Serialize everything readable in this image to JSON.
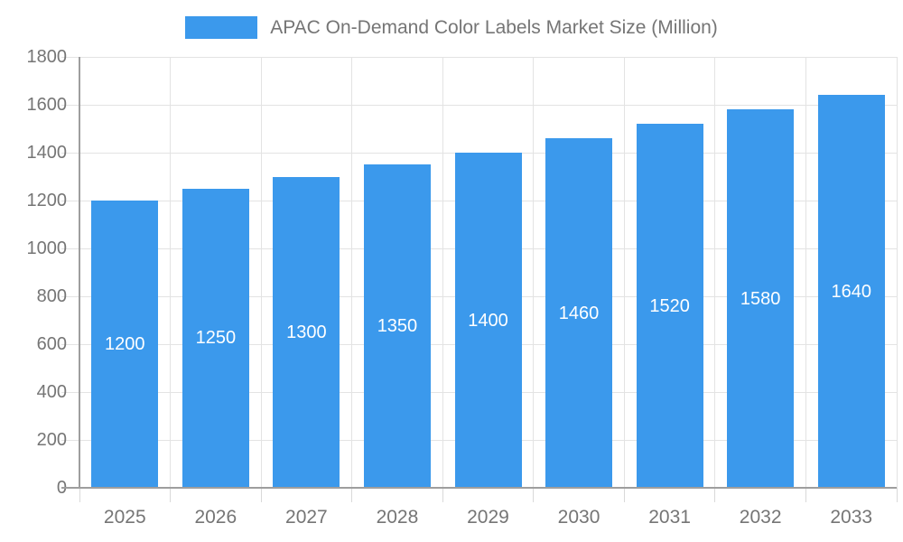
{
  "legend": {
    "label": "APAC On-Demand Color Labels Market Size (Million)",
    "swatch_color": "#3B99EC"
  },
  "chart_data": {
    "type": "bar",
    "title": "APAC On-Demand Color Labels Market Size (Million)",
    "categories": [
      "2025",
      "2026",
      "2027",
      "2028",
      "2029",
      "2030",
      "2031",
      "2032",
      "2033"
    ],
    "values": [
      1200,
      1250,
      1300,
      1350,
      1400,
      1460,
      1520,
      1580,
      1640
    ],
    "bar_labels": [
      "1200",
      "1250",
      "1300",
      "1350",
      "1400",
      "1460",
      "1520",
      "1580",
      "1640"
    ],
    "xlabel": "",
    "ylabel": "",
    "ylim": [
      0,
      1800
    ],
    "yticks": [
      0,
      200,
      400,
      600,
      800,
      1000,
      1200,
      1400,
      1600,
      1800
    ],
    "grid": true,
    "legend_position": "top-center",
    "bar_color": "#3B99EC",
    "bar_label_color": "#ffffff",
    "axis_text_color": "#757575",
    "grid_color": "#E3E3E3",
    "tick_color": "#D9D9D9",
    "axis_line_color": "#9E9E9E"
  }
}
